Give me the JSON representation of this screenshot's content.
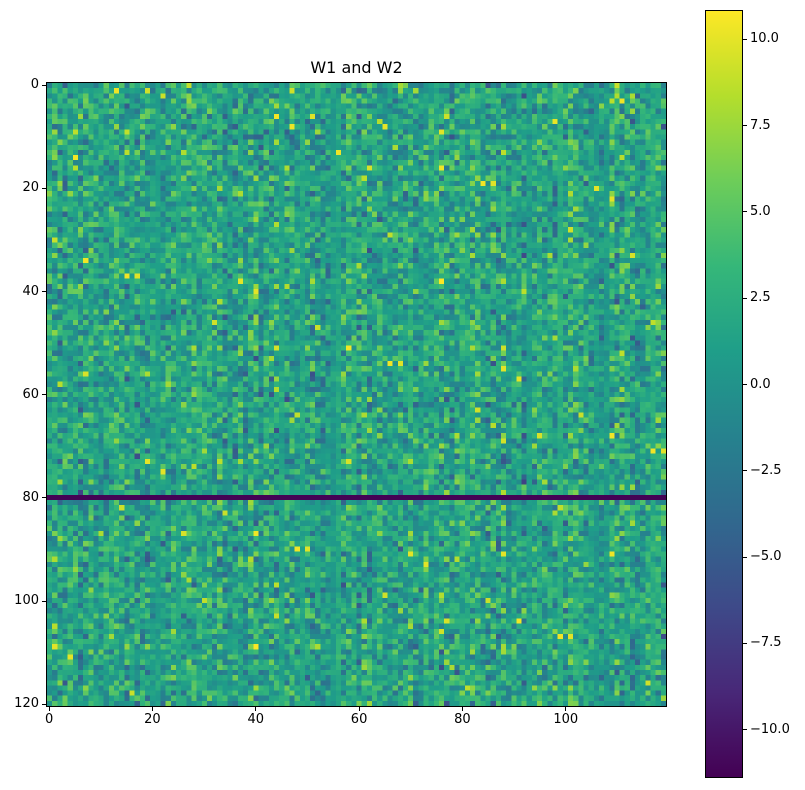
{
  "chart_data": {
    "type": "heatmap",
    "title": "W1 and W2",
    "xlabel": "",
    "ylabel": "",
    "n_rows": 121,
    "n_cols": 120,
    "xlim": [
      -0.5,
      119.5
    ],
    "ylim": [
      120.5,
      -0.5
    ],
    "x_ticks": [
      "0",
      "20",
      "40",
      "60",
      "80",
      "100"
    ],
    "y_ticks": [
      "0",
      "20",
      "40",
      "60",
      "80",
      "100",
      "120"
    ],
    "colormap": "viridis",
    "value_range": [
      -11.4,
      10.85
    ],
    "colorbar_ticks": [
      "10.0",
      "7.5",
      "5.0",
      "2.5",
      "0.0",
      "−2.5",
      "−5.0",
      "−7.5",
      "−10.0"
    ],
    "colorbar_values": [
      10,
      7.5,
      5,
      2.5,
      0,
      -2.5,
      -5,
      -7.5,
      -10
    ],
    "constant_row": {
      "row": 80,
      "value": -11.3
    },
    "typical_mean": 1.5,
    "typical_std": 2.5,
    "grid": false
  }
}
